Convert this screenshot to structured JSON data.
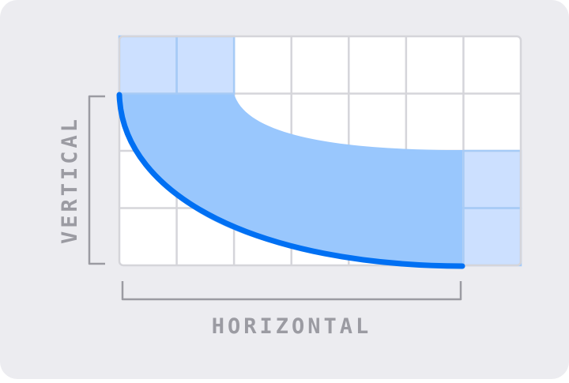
{
  "diagram": {
    "labels": {
      "vertical": "VERTICAL",
      "horizontal": "HORIZONTAL"
    },
    "grid": {
      "columns": 7,
      "rows": 4
    },
    "highlighted_cells": [
      {
        "col": 0,
        "row": 0
      },
      {
        "col": 1,
        "row": 0
      },
      {
        "col": 6,
        "row": 2
      },
      {
        "col": 6,
        "row": 3
      }
    ],
    "colors": {
      "background": "#ECECF0",
      "grid_fill": "#FFFFFF",
      "grid_line": "#D5D5DA",
      "highlight_fill": "#CCE0FF",
      "highlight_border": "#A6CBF7",
      "shape_fill": "#99C7FD",
      "curve_stroke": "#0070F3",
      "label_text": "#9B9BA2",
      "bracket": "#9B9BA2"
    }
  }
}
